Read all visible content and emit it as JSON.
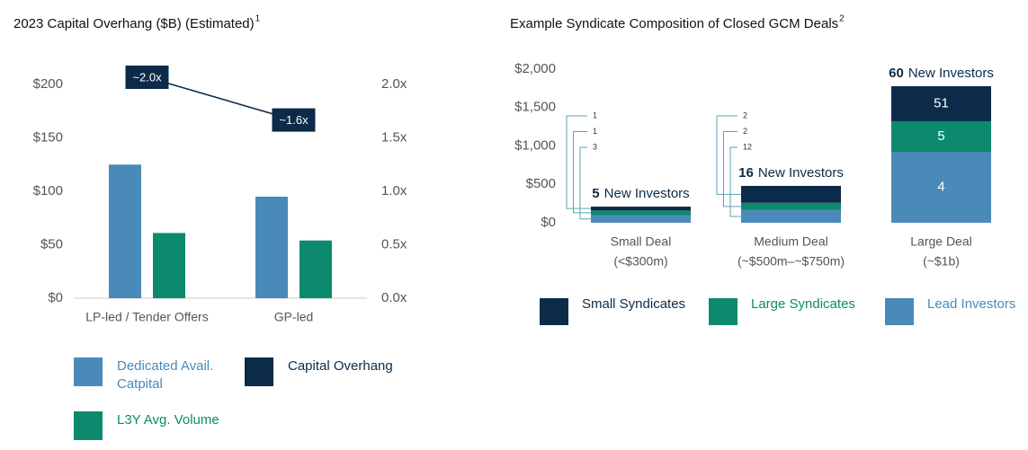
{
  "chart_data": [
    {
      "type": "bar",
      "title": "2023 Capital Overhang ($B) (Estimated)",
      "title_footnote": "1",
      "categories": [
        "LP-led / Tender Offers",
        "GP-led"
      ],
      "series": [
        {
          "name": "Dedicated Avail. Catpital",
          "color": "#4a8ab8",
          "values": [
            125,
            95
          ]
        },
        {
          "name": "Capital Overhang",
          "type": "line",
          "axis": "y2",
          "color": "#0b2b48",
          "values": [
            2.0,
            1.6
          ],
          "value_labels": [
            "~2.0x",
            "~1.6x"
          ]
        },
        {
          "name": "L3Y Avg. Volume",
          "color": "#0d8a6e",
          "values": [
            61,
            54
          ]
        }
      ],
      "ylim": [
        0,
        200
      ],
      "yticks": [
        {
          "value": 0,
          "label": "$0"
        },
        {
          "value": 50,
          "label": "$50"
        },
        {
          "value": 100,
          "label": "$100"
        },
        {
          "value": 150,
          "label": "$150"
        },
        {
          "value": 200,
          "label": "$200"
        }
      ],
      "y2lim": [
        0,
        2
      ],
      "y2ticks": [
        {
          "value": 0,
          "label": "0.0x"
        },
        {
          "value": 0.5,
          "label": "0.5x"
        },
        {
          "value": 1,
          "label": "1.0x"
        },
        {
          "value": 1.5,
          "label": "1.5x"
        },
        {
          "value": 2,
          "label": "2.0x"
        }
      ],
      "legend": "bottom"
    },
    {
      "type": "stacked_bar",
      "title": "Example Syndicate Composition of Closed GCM Deals",
      "title_footnote": "2",
      "categories": [
        [
          "Small Deal",
          "(<$300m)"
        ],
        [
          "Medium Deal",
          "(~$500m–~$750m)"
        ],
        [
          "Large Deal",
          "(~$1b)"
        ]
      ],
      "series": [
        {
          "name": "Small Syndicates",
          "color": "#0b2b48",
          "values": [
            50,
            220,
            456
          ],
          "investor_counts": [
            1,
            2,
            51
          ]
        },
        {
          "name": "Large Syndicates",
          "color": "#0d8a6e",
          "values": [
            60,
            95,
            398
          ],
          "investor_counts": [
            1,
            2,
            5
          ]
        },
        {
          "name": "Lead Investors",
          "color": "#4a8ab8",
          "values": [
            100,
            165,
            924
          ],
          "investor_counts": [
            3,
            12,
            4
          ]
        }
      ],
      "new_investors": [
        5,
        16,
        60
      ],
      "new_investors_label": "New Investors",
      "ylim": [
        0,
        2000
      ],
      "yticks": [
        {
          "value": 0,
          "label": "$0"
        },
        {
          "value": 500,
          "label": "$500"
        },
        {
          "value": 1000,
          "label": "$1,000"
        },
        {
          "value": 1500,
          "label": "$1,500"
        },
        {
          "value": 2000,
          "label": "$2,000"
        }
      ],
      "legend": "bottom"
    }
  ]
}
